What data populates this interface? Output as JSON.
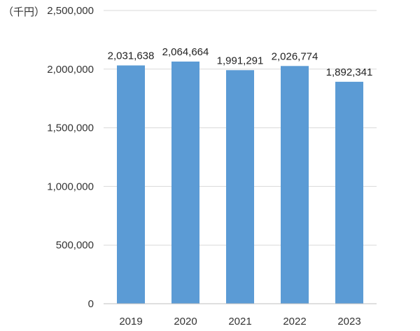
{
  "colors": {
    "bar": "#5b9bd5",
    "grid": "#d9d9d9",
    "axis": "#bfbfbf",
    "text": "#333333"
  },
  "chart_data": {
    "type": "bar",
    "unit_label": "（千円）",
    "categories": [
      "2019",
      "2020",
      "2021",
      "2022",
      "2023"
    ],
    "values": [
      2031638,
      2064664,
      1991291,
      2026774,
      1892341
    ],
    "data_labels": [
      "2,031,638",
      "2,064,664",
      "1,991,291",
      "2,026,774",
      "1,892,341"
    ],
    "yticks": [
      0,
      500000,
      1000000,
      1500000,
      2000000,
      2500000
    ],
    "ytick_labels": [
      "0",
      "500,000",
      "1,000,000",
      "1,500,000",
      "2,000,000",
      "2,500,000"
    ],
    "ylim": [
      0,
      2500000
    ],
    "grid": true,
    "legend": "none"
  }
}
